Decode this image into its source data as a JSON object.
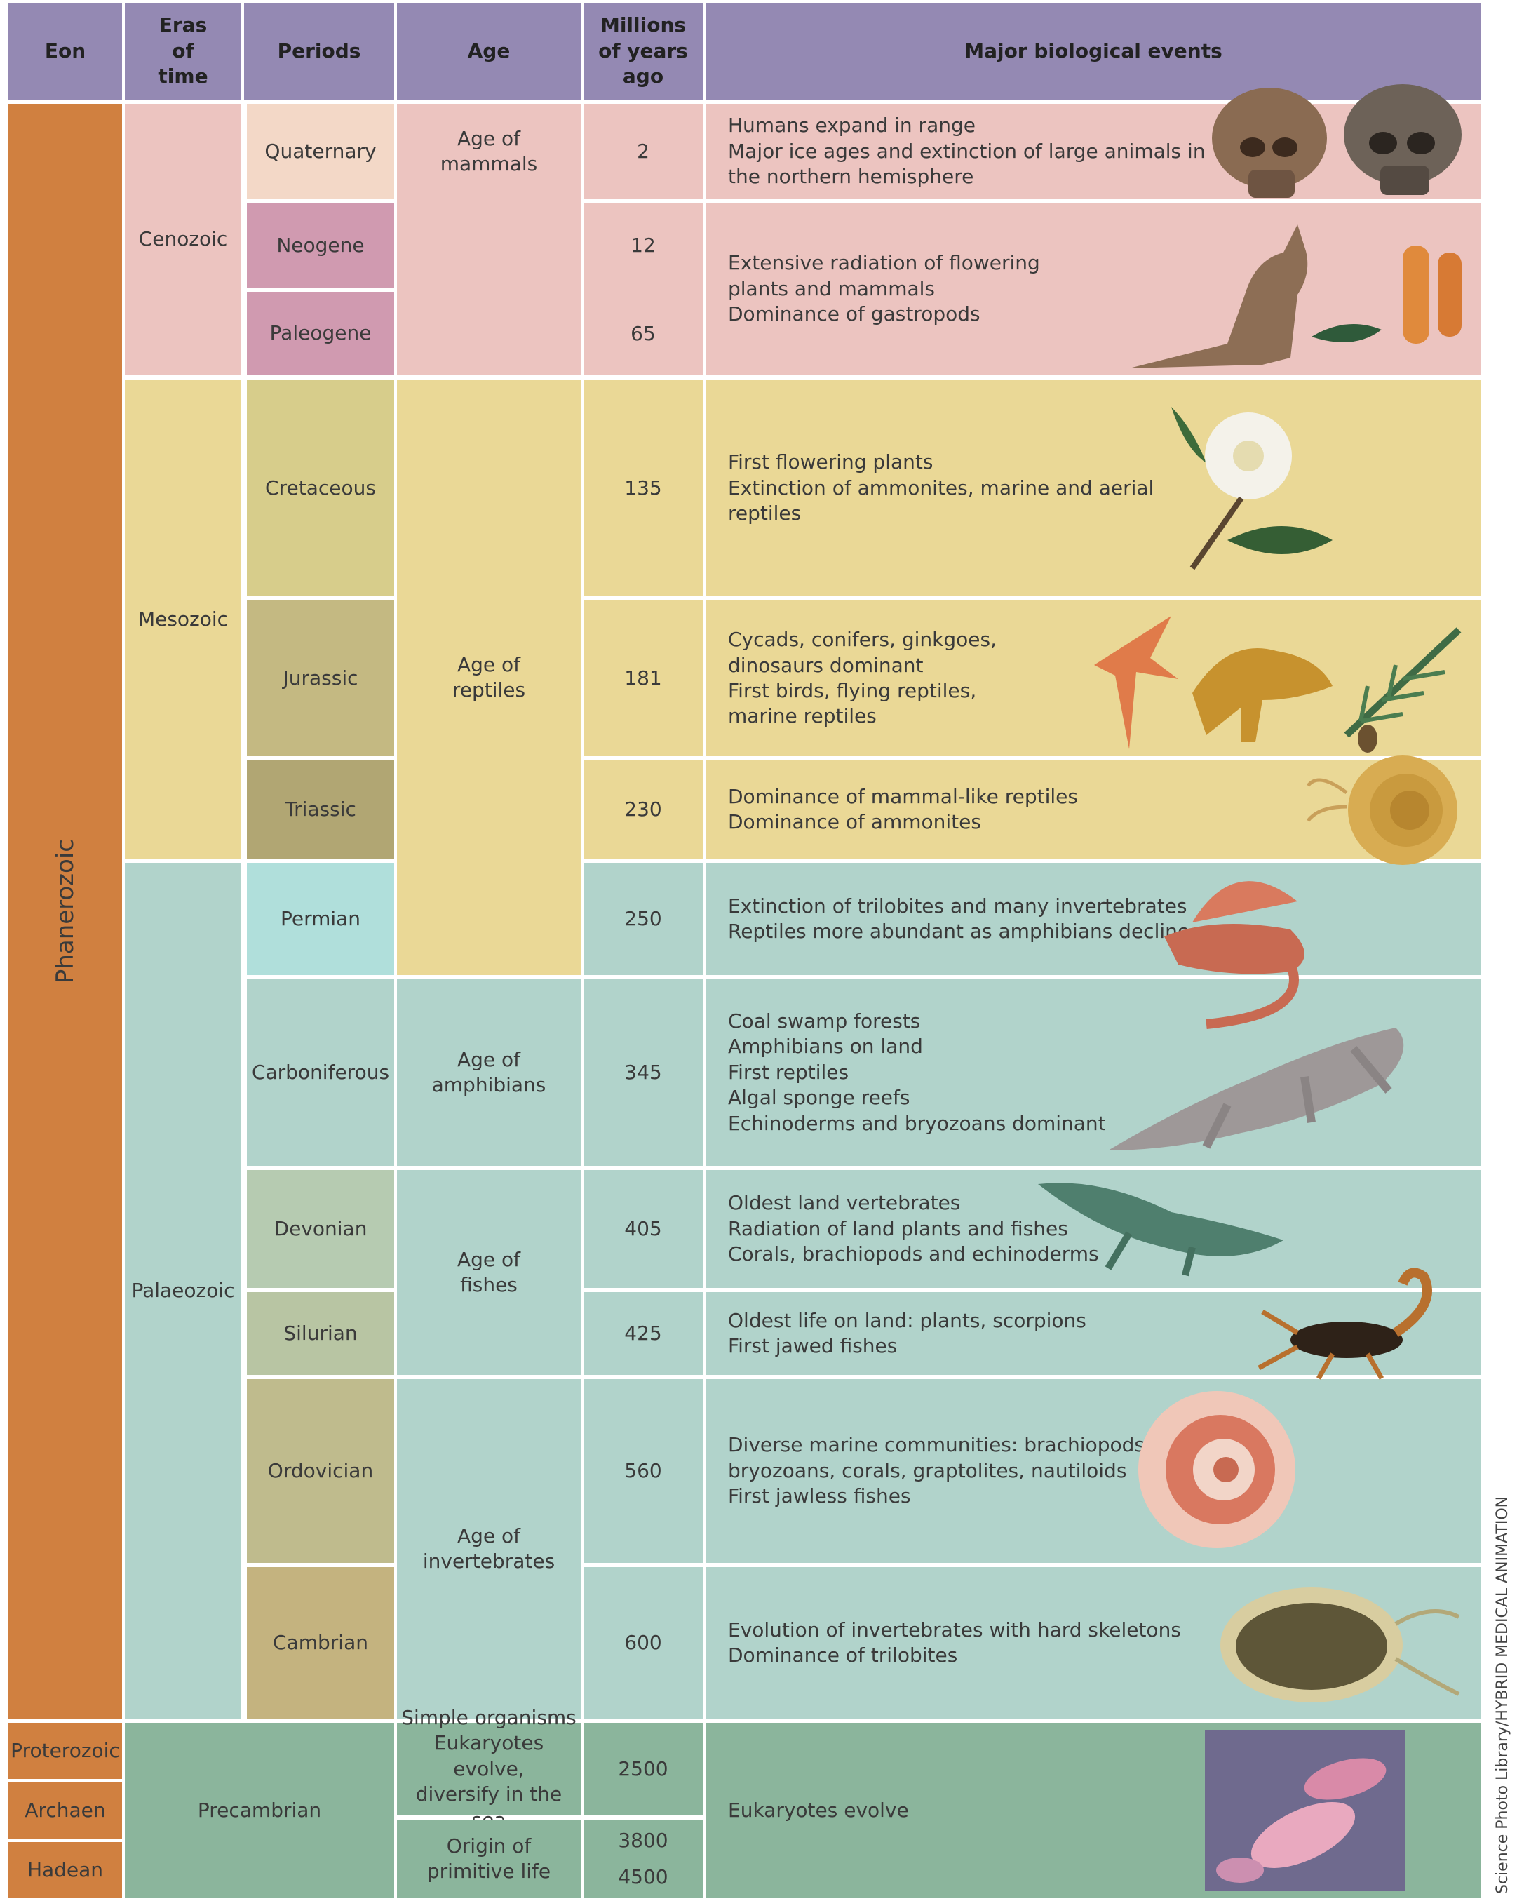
{
  "header": {
    "eon": "Eon",
    "eras": "Eras of time",
    "periods": "Periods",
    "age": "Age",
    "mya": "Millions of years ago",
    "events": "Major biological events"
  },
  "eons": {
    "phanerozoic": "Phanerozoic",
    "proterozoic": "Proterozoic",
    "archaen": "Archaen",
    "hadean": "Hadean"
  },
  "eras": {
    "cenozoic": "Cenozoic",
    "mesozoic": "Mesozoic",
    "palaeozoic": "Palaeozoic",
    "precambrian": "Precambrian"
  },
  "periods": {
    "quaternary": "Quaternary",
    "neogene": "Neogene",
    "paleogene": "Paleogene",
    "cretaceous": "Cretaceous",
    "jurassic": "Jurassic",
    "triassic": "Triassic",
    "permian": "Permian",
    "carboniferous": "Carboniferous",
    "devonian": "Devonian",
    "silurian": "Silurian",
    "ordovician": "Ordovician",
    "cambrian": "Cambrian"
  },
  "ages": {
    "mammals": "Age of mammals",
    "reptiles": "Age of reptiles",
    "amphibians": "Age of amphibians",
    "fishes": "Age of fishes",
    "invertebrates": "Age of invertebrates",
    "simple": [
      "Simple organisms",
      "Eukaryotes evolve,",
      "diversify in the sea"
    ],
    "origin": [
      "Origin of",
      "primitive life"
    ]
  },
  "mya": {
    "quaternary": "2",
    "neogene": "12",
    "paleogene": "65",
    "cretaceous": "135",
    "jurassic": "181",
    "triassic": "230",
    "permian": "250",
    "carboniferous": "345",
    "devonian": "405",
    "silurian": "425",
    "ordovician": "560",
    "cambrian": "600",
    "proterozoic": "2500",
    "archaen": "3800",
    "hadean": "4500"
  },
  "events": {
    "quaternary": [
      "Humans expand in range",
      "Major ice ages and extinction of large animals in",
      "the northern hemisphere"
    ],
    "neogene_paleogene": [
      "Extensive radiation of flowering",
      "plants and mammals",
      "Dominance of gastropods"
    ],
    "cretaceous": [
      "First flowering plants",
      "Extinction of ammonites, marine and aerial",
      "reptiles"
    ],
    "jurassic": [
      "Cycads, conifers, ginkgoes,",
      "dinosaurs dominant",
      "First birds, flying reptiles,",
      "marine reptiles"
    ],
    "triassic": [
      "Dominance of mammal-like reptiles",
      "Dominance of ammonites"
    ],
    "permian": [
      "Extinction of trilobites and many invertebrates",
      "Reptiles more abundant as amphibians decline"
    ],
    "carboniferous": [
      "Coal swamp forests",
      "Amphibians on land",
      "First reptiles",
      "Algal sponge reefs",
      "Echinoderms and bryozoans dominant"
    ],
    "devonian": [
      "Oldest land vertebrates",
      "Radiation of land plants and fishes",
      "Corals, brachiopods and echinoderms"
    ],
    "silurian": [
      "Oldest life on land: plants, scorpions",
      "First jawed fishes"
    ],
    "ordovician": [
      "Diverse marine communities: brachiopods,",
      "bryozoans, corals, graptolites, nautiloids",
      "First jawless fishes"
    ],
    "cambrian": [
      "Evolution of invertebrates with hard skeletons",
      "Dominance of trilobites"
    ],
    "precambrian": [
      "Eukaryotes evolve"
    ]
  },
  "credit": "Science Photo Library/HYBRID MEDICAL ANIMATION",
  "colors": {
    "header": "#9489b3",
    "eon": "#d08040",
    "cenozoic": "#ecc4c0",
    "mesozoic": "#ead896",
    "palaeozoic": "#b1d3cb",
    "precambrian": "#8bb59c",
    "quaternary": "#f3d8c7",
    "neogene": "#d09ab0",
    "cretaceous": "#d7cd8b",
    "jurassic": "#c4b982",
    "triassic": "#b1a673",
    "permian": "#b0dfdb",
    "carboniferous": "#b1d3cb",
    "devonian": "#b6cbb1",
    "silurian": "#b8c5a3",
    "ordovician": "#bfbb8d",
    "cambrian": "#c4b37f"
  }
}
